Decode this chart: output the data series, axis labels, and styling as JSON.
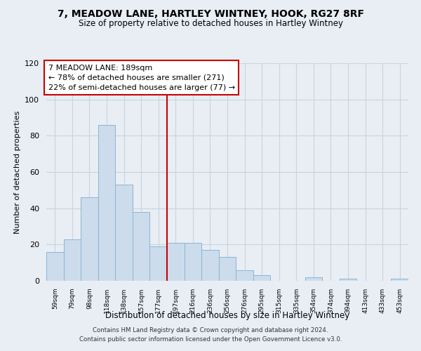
{
  "title": "7, MEADOW LANE, HARTLEY WINTNEY, HOOK, RG27 8RF",
  "subtitle": "Size of property relative to detached houses in Hartley Wintney",
  "xlabel": "Distribution of detached houses by size in Hartley Wintney",
  "ylabel": "Number of detached properties",
  "categories": [
    "59sqm",
    "79sqm",
    "98sqm",
    "118sqm",
    "138sqm",
    "157sqm",
    "177sqm",
    "197sqm",
    "216sqm",
    "236sqm",
    "256sqm",
    "276sqm",
    "295sqm",
    "315sqm",
    "335sqm",
    "354sqm",
    "374sqm",
    "394sqm",
    "413sqm",
    "433sqm",
    "453sqm"
  ],
  "values": [
    16,
    23,
    46,
    86,
    53,
    38,
    19,
    21,
    21,
    17,
    13,
    6,
    3,
    0,
    0,
    2,
    0,
    1,
    0,
    0,
    1
  ],
  "bar_color": "#ccdcec",
  "bar_edge_color": "#8ab4d4",
  "vline_x_index": 7,
  "vline_color": "#cc0000",
  "annotation_line1": "7 MEADOW LANE: 189sqm",
  "annotation_line2": "← 78% of detached houses are smaller (271)",
  "annotation_line3": "22% of semi-detached houses are larger (77) →",
  "annotation_box_color": "#ffffff",
  "annotation_box_edge_color": "#cc0000",
  "ylim": [
    0,
    120
  ],
  "yticks": [
    0,
    20,
    40,
    60,
    80,
    100,
    120
  ],
  "footer_line1": "Contains HM Land Registry data © Crown copyright and database right 2024.",
  "footer_line2": "Contains public sector information licensed under the Open Government Licence v3.0.",
  "background_color": "#e8eef4",
  "plot_background_color": "#e8eef4",
  "grid_color": "#c8d4e0"
}
